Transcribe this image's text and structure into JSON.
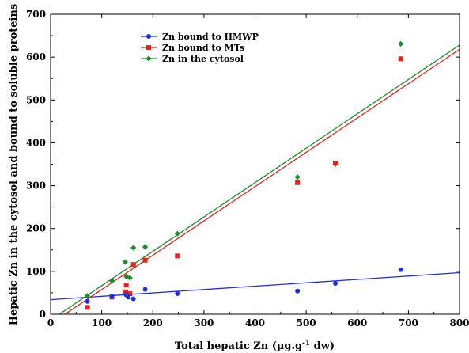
{
  "chart_data": {
    "type": "scatter",
    "title": "",
    "xlabel": "Total hepatic Zn (µg.g",
    "xlabel_sup": "-1",
    "xlabel_suffix": " dw)",
    "ylabel": "Hepatic Zn in the cytosol and bound to soluble proteins",
    "xlim": [
      0,
      800
    ],
    "ylim": [
      0,
      700
    ],
    "x_ticks": [
      0,
      100,
      200,
      300,
      400,
      500,
      600,
      700,
      800
    ],
    "y_ticks": [
      0,
      100,
      200,
      300,
      400,
      500,
      600,
      700
    ],
    "grid": false,
    "legend_position": "top-left",
    "series": [
      {
        "name": "Zn bound to HMWP",
        "color": "#1f2ee6",
        "marker": "circle",
        "points": [
          [
            72,
            30
          ],
          [
            120,
            42
          ],
          [
            148,
            45
          ],
          [
            152,
            40
          ],
          [
            162,
            36
          ],
          [
            185,
            58
          ],
          [
            248,
            48
          ],
          [
            483,
            54
          ],
          [
            557,
            72
          ],
          [
            685,
            104
          ]
        ],
        "fit": [
          [
            0,
            34
          ],
          [
            800,
            97
          ]
        ]
      },
      {
        "name": "Zn bound to MTs",
        "color": "#e8221b",
        "marker": "square",
        "points": [
          [
            72,
            16
          ],
          [
            120,
            40
          ],
          [
            147,
            52
          ],
          [
            148,
            68
          ],
          [
            155,
            48
          ],
          [
            162,
            116
          ],
          [
            185,
            126
          ],
          [
            248,
            136
          ],
          [
            483,
            307
          ],
          [
            557,
            353
          ],
          [
            685,
            596
          ]
        ],
        "fit": [
          [
            28,
            0
          ],
          [
            800,
            618
          ]
        ]
      },
      {
        "name": "Zn in the cytosol",
        "color": "#1d8c2a",
        "marker": "diamond",
        "points": [
          [
            72,
            43
          ],
          [
            120,
            78
          ],
          [
            146,
            122
          ],
          [
            148,
            88
          ],
          [
            155,
            85
          ],
          [
            162,
            155
          ],
          [
            185,
            157
          ],
          [
            248,
            188
          ],
          [
            483,
            320
          ],
          [
            557,
            350
          ],
          [
            685,
            631
          ]
        ],
        "fit": [
          [
            17,
            0
          ],
          [
            800,
            628
          ]
        ]
      }
    ]
  }
}
